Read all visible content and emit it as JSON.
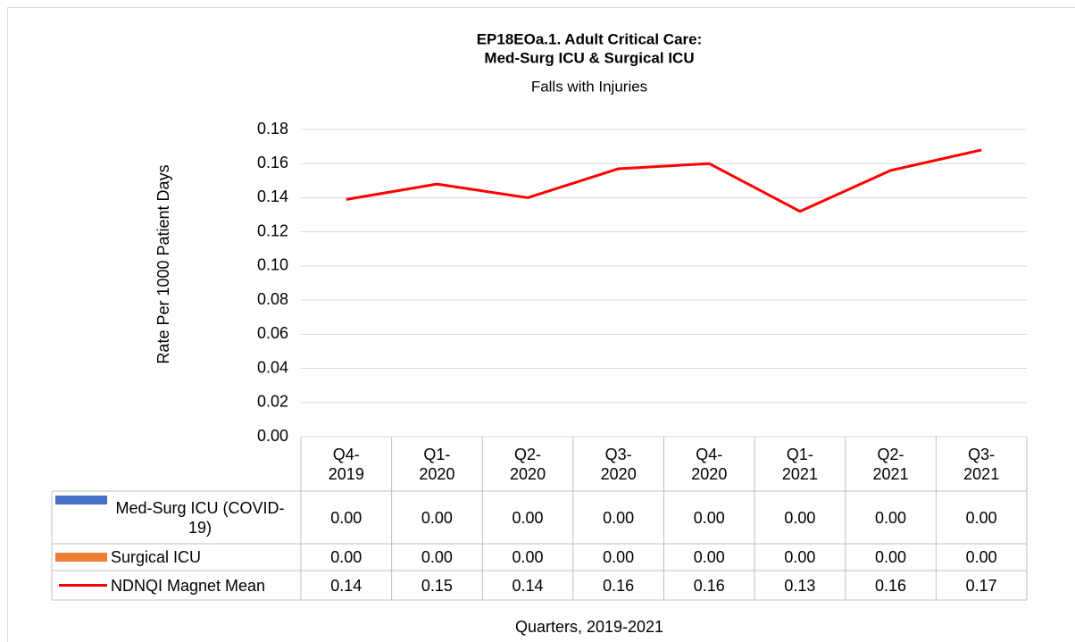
{
  "chart_data": {
    "type": "line",
    "title": [
      "EP18EOa.1. Adult Critical Care:",
      "Med-Surg ICU & Surgical ICU"
    ],
    "subtitle": "Falls with Injuries",
    "y_label": "Rate Per 1000 Patient Days",
    "x_label": "Quarters, 2019-2021",
    "categories": [
      "Q4-2019",
      "Q1-2020",
      "Q2-2020",
      "Q3-2020",
      "Q4-2020",
      "Q1-2021",
      "Q2-2021",
      "Q3-2021"
    ],
    "series": [
      {
        "name": "Med-Surg ICU (COVID-19)",
        "type": "bar",
        "color": "#4472c4",
        "values": [
          0,
          0,
          0,
          0,
          0,
          0,
          0,
          0
        ],
        "value_labels": [
          "0.00",
          "0.00",
          "0.00",
          "0.00",
          "0.00",
          "0.00",
          "0.00",
          "0.00"
        ]
      },
      {
        "name": "Surgical ICU",
        "type": "bar",
        "color": "#ed7d31",
        "values": [
          0,
          0,
          0,
          0,
          0,
          0,
          0,
          0
        ],
        "value_labels": [
          "0.00",
          "0.00",
          "0.00",
          "0.00",
          "0.00",
          "0.00",
          "0.00",
          "0.00"
        ]
      },
      {
        "name": "NDNQI Magnet Mean",
        "type": "line",
        "color": "#ff0000",
        "values": [
          0.139,
          0.148,
          0.14,
          0.157,
          0.16,
          0.132,
          0.156,
          0.168
        ],
        "value_labels": [
          "0.14",
          "0.15",
          "0.14",
          "0.16",
          "0.16",
          "0.13",
          "0.16",
          "0.17"
        ]
      }
    ],
    "ylim": [
      0,
      0.18
    ],
    "yticks": [
      {
        "value": 0,
        "label": "0.00"
      },
      0.02,
      0.04,
      0.06,
      0.08,
      {
        "value": 0.1,
        "label": "0.10"
      },
      0.12,
      0.14,
      0.16,
      0.18
    ],
    "grid": true
  }
}
